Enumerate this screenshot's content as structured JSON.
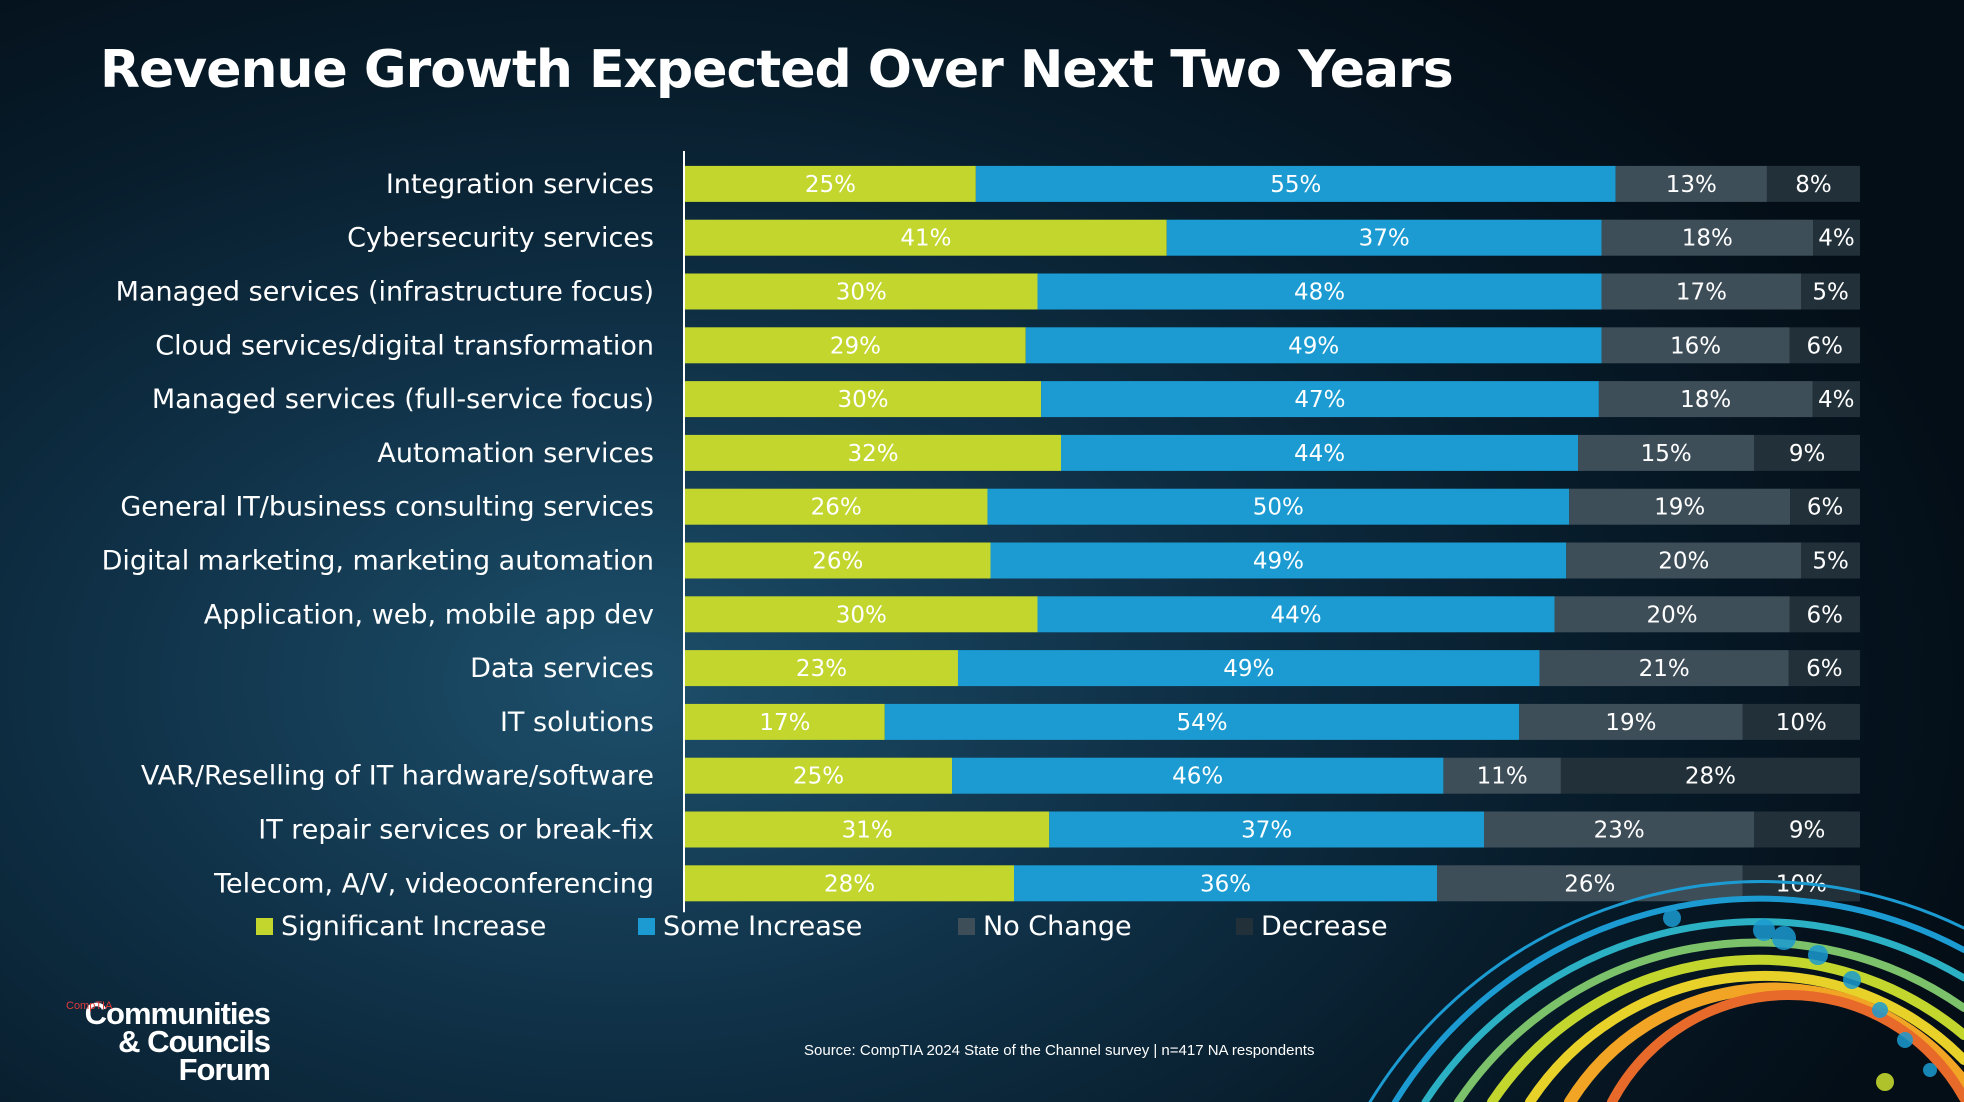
{
  "chart_data": {
    "type": "bar",
    "orientation": "horizontal",
    "stacked": "100%",
    "title": "Revenue Growth Expected Over Next Two Years",
    "categories": [
      "Integration services",
      "Cybersecurity services",
      "Managed services (infrastructure focus)",
      "Cloud services/digital transformation",
      "Managed services (full-service focus)",
      "Automation services",
      "General IT/business consulting services",
      "Digital marketing, marketing automation",
      "Application, web, mobile app dev",
      "Data services",
      "IT solutions",
      "VAR/Reselling of IT hardware/software",
      "IT repair services or break-fix",
      "Telecom, A/V, videoconferencing"
    ],
    "series": [
      {
        "name": "Significant Increase",
        "color": "#c2d62e",
        "values": [
          25,
          41,
          30,
          29,
          30,
          32,
          26,
          26,
          30,
          23,
          17,
          25,
          31,
          28
        ]
      },
      {
        "name": "Some Increase",
        "color": "#1b9bd1",
        "values": [
          55,
          37,
          48,
          49,
          47,
          44,
          50,
          49,
          44,
          49,
          54,
          46,
          37,
          36
        ]
      },
      {
        "name": "No Change",
        "color": "#3e4e59",
        "values": [
          13,
          18,
          17,
          16,
          18,
          15,
          19,
          20,
          20,
          21,
          19,
          11,
          23,
          26
        ]
      },
      {
        "name": "Decrease",
        "color": "#22303a",
        "values": [
          8,
          4,
          5,
          6,
          4,
          9,
          6,
          5,
          6,
          6,
          10,
          28,
          9,
          10
        ]
      }
    ],
    "value_suffix": "%",
    "legend_position": "bottom",
    "grid": false
  },
  "footer": {
    "source": "Source: CompTIA 2024 State of the Channel survey | n=417 NA respondents",
    "logo_brand": "CompTIA",
    "logo_line1": "Communities",
    "logo_line2": "& Councils",
    "logo_line3": "Forum"
  }
}
